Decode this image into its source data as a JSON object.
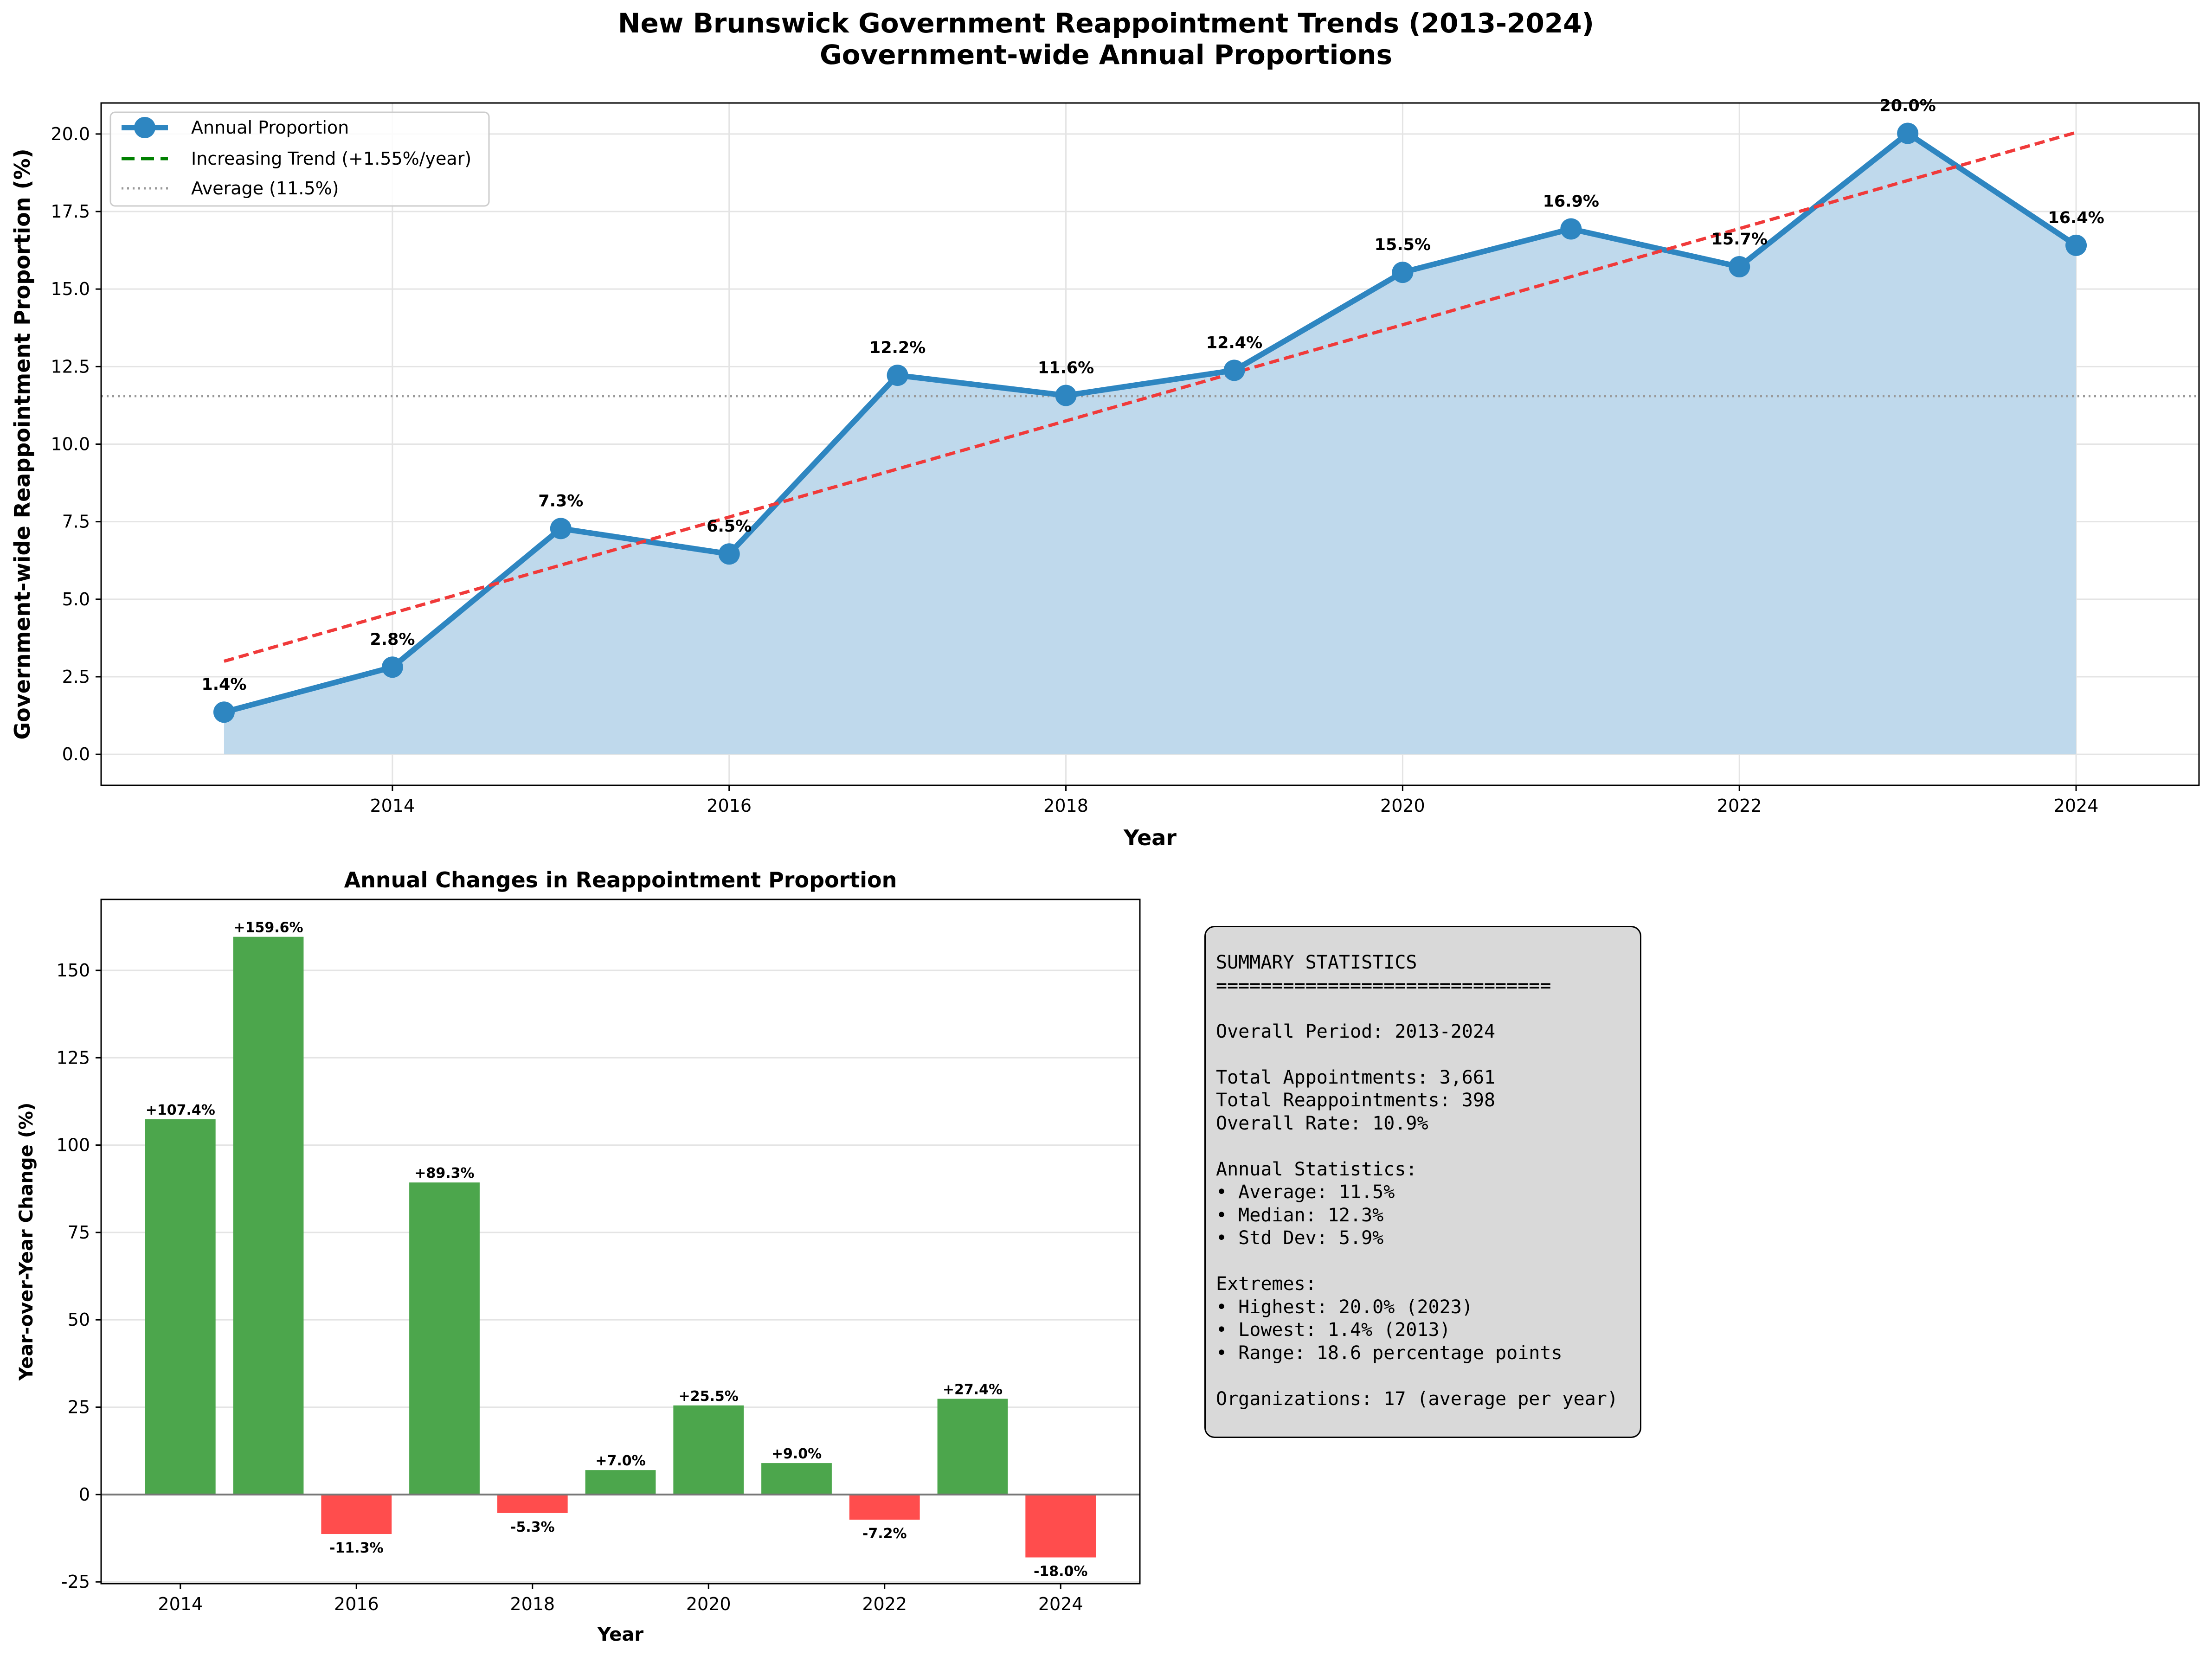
{
  "figure": {
    "title_line1": "New Brunswick Government Reappointment Trends (2013-2024)",
    "title_line2": "Government-wide Annual Proportions"
  },
  "chart_data": [
    {
      "type": "line",
      "title": "",
      "xlabel": "Year",
      "ylabel": "Government-wide Reappointment Proportion (%)",
      "xlim": [
        2012.27,
        2024.73
      ],
      "ylim": [
        -1.0,
        21.0
      ],
      "x_ticks": [
        2014,
        2016,
        2018,
        2020,
        2022,
        2024
      ],
      "y_ticks": [
        0.0,
        2.5,
        5.0,
        7.5,
        10.0,
        12.5,
        15.0,
        17.5,
        20.0
      ],
      "y_tick_labels": [
        "0.0",
        "2.5",
        "5.0",
        "7.5",
        "10.0",
        "12.5",
        "15.0",
        "17.5",
        "20.0"
      ],
      "grid": true,
      "legend_position": "upper-left",
      "x": [
        2013,
        2014,
        2015,
        2016,
        2017,
        2018,
        2019,
        2020,
        2021,
        2022,
        2023,
        2024
      ],
      "series": [
        {
          "name": "Annual Proportion",
          "values": [
            1.36,
            2.81,
            7.28,
            6.46,
            12.22,
            11.57,
            12.38,
            15.54,
            16.94,
            15.72,
            20.02,
            16.41
          ],
          "labels": [
            "1.4%",
            "2.8%",
            "7.3%",
            "6.5%",
            "12.2%",
            "11.6%",
            "12.4%",
            "15.5%",
            "16.9%",
            "15.7%",
            "20.0%",
            "16.4%"
          ],
          "color": "#2e86c1",
          "fill_color": "#bfd9ec"
        },
        {
          "name": "Increasing Trend (+1.55%/year)",
          "legend_color": "#008000",
          "color": "#f03a3a",
          "style": "dashed",
          "x": [
            2013,
            2024
          ],
          "values": [
            3.0,
            20.05
          ]
        },
        {
          "name": "Average (11.5%)",
          "color": "#999999",
          "style": "dotted",
          "value": 11.55
        }
      ]
    },
    {
      "type": "bar",
      "title": "Annual Changes in Reappointment Proportion",
      "xlabel": "Year",
      "ylabel": "Year-over-Year Change (%)",
      "xlim": [
        2013.1,
        2024.9
      ],
      "ylim": [
        -25.5,
        170.3
      ],
      "x_ticks": [
        2014,
        2016,
        2018,
        2020,
        2022,
        2024
      ],
      "y_ticks": [
        -25,
        0,
        25,
        50,
        75,
        100,
        125,
        150
      ],
      "grid": true,
      "categories": [
        2014,
        2015,
        2016,
        2017,
        2018,
        2019,
        2020,
        2021,
        2022,
        2023,
        2024
      ],
      "values": [
        107.4,
        159.6,
        -11.3,
        89.3,
        -5.3,
        7.0,
        25.5,
        9.0,
        -7.2,
        27.4,
        -18.0
      ],
      "labels": [
        "+107.4%",
        "+159.6%",
        "-11.3%",
        "+89.3%",
        "-5.3%",
        "+7.0%",
        "+25.5%",
        "+9.0%",
        "-7.2%",
        "+27.4%",
        "-18.0%"
      ],
      "positive_color": "#4ca64c",
      "negative_color": "#ff4d4d"
    }
  ],
  "summary": {
    "lines": [
      "SUMMARY STATISTICS",
      "==============================",
      "",
      "Overall Period: 2013-2024",
      "",
      "Total Appointments: 3,661",
      "Total Reappointments: 398",
      "Overall Rate: 10.9%",
      "",
      "Annual Statistics:",
      "• Average: 11.5%",
      "• Median: 12.3%",
      "• Std Dev: 5.9%",
      "",
      "Extremes:",
      "• Highest: 20.0% (2023)",
      "• Lowest: 1.4% (2013)",
      "• Range: 18.6 percentage points",
      "",
      "Organizations: 17 (average per year)"
    ]
  }
}
